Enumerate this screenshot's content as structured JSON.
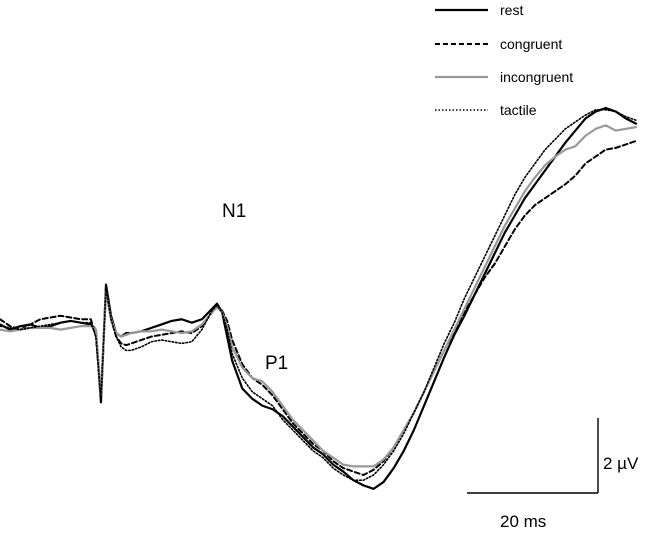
{
  "chart_data": {
    "type": "line",
    "title": "",
    "xlabel": "",
    "ylabel": "",
    "x_unit": "ms",
    "y_unit": "µV",
    "x": [
      0,
      2,
      4,
      6,
      8,
      10,
      12,
      14,
      16,
      18,
      19,
      20,
      21,
      22,
      23,
      24,
      25,
      26,
      28,
      30,
      32,
      34,
      36,
      38,
      40,
      42,
      43,
      44,
      45,
      46,
      48,
      50,
      52,
      54,
      56,
      58,
      60,
      62,
      64,
      66,
      68,
      70,
      72,
      74,
      76,
      78,
      80,
      82,
      84,
      86,
      88,
      90,
      92,
      94,
      96,
      98,
      100,
      102,
      104,
      106,
      108,
      110,
      112,
      114,
      116,
      118,
      120,
      122,
      124,
      126
    ],
    "series": [
      {
        "name": "rest",
        "color": "#000000",
        "dash": "solid",
        "values": [
          0.15,
          0.0,
          0.1,
          0.15,
          0.05,
          0.1,
          0.2,
          0.25,
          0.2,
          0.15,
          0.0,
          -2.1,
          1.3,
          0.4,
          -0.1,
          -0.2,
          -0.1,
          -0.1,
          -0.05,
          0.05,
          0.15,
          0.25,
          0.3,
          0.2,
          0.3,
          0.6,
          0.75,
          0.5,
          -0.2,
          -0.9,
          -1.7,
          -2.0,
          -2.2,
          -2.3,
          -2.5,
          -2.8,
          -3.1,
          -3.4,
          -3.6,
          -3.9,
          -4.1,
          -4.35,
          -4.5,
          -4.6,
          -4.4,
          -4.0,
          -3.5,
          -2.9,
          -2.2,
          -1.5,
          -0.8,
          -0.15,
          0.4,
          1.0,
          1.6,
          2.2,
          2.8,
          3.3,
          3.8,
          4.2,
          4.6,
          5.0,
          5.4,
          5.75,
          6.1,
          6.3,
          6.4,
          6.3,
          6.1,
          5.95
        ]
      },
      {
        "name": "congruent",
        "color": "#000000",
        "dash": "dashed",
        "values": [
          0.3,
          0.1,
          0.0,
          0.15,
          0.3,
          0.35,
          0.4,
          0.35,
          0.3,
          0.3,
          -0.2,
          -1.9,
          1.1,
          0.3,
          -0.2,
          -0.4,
          -0.45,
          -0.4,
          -0.3,
          -0.2,
          -0.15,
          -0.1,
          -0.05,
          -0.1,
          0.1,
          0.5,
          0.65,
          0.55,
          0.25,
          -0.3,
          -1.0,
          -1.4,
          -1.6,
          -1.9,
          -2.3,
          -2.7,
          -3.0,
          -3.3,
          -3.5,
          -3.8,
          -4.0,
          -4.1,
          -4.2,
          -4.05,
          -3.8,
          -3.4,
          -2.9,
          -2.4,
          -1.8,
          -1.2,
          -0.6,
          -0.05,
          0.5,
          1.0,
          1.5,
          1.9,
          2.4,
          2.9,
          3.3,
          3.6,
          3.8,
          4.0,
          4.2,
          4.45,
          4.8,
          5.0,
          5.2,
          5.25,
          5.35,
          5.45
        ]
      },
      {
        "name": "incongruent",
        "color": "#999999",
        "dash": "solid",
        "values": [
          0.0,
          -0.05,
          0.0,
          0.05,
          0.05,
          0.05,
          0.0,
          0.05,
          0.1,
          0.1,
          0.0,
          -1.9,
          1.1,
          0.3,
          -0.1,
          -0.2,
          -0.15,
          -0.1,
          -0.05,
          -0.05,
          0.0,
          -0.05,
          -0.1,
          -0.05,
          0.15,
          0.5,
          0.65,
          0.5,
          0.1,
          -0.5,
          -1.1,
          -1.4,
          -1.5,
          -1.8,
          -2.2,
          -2.6,
          -2.9,
          -3.2,
          -3.5,
          -3.7,
          -3.9,
          -3.95,
          -3.95,
          -3.95,
          -3.75,
          -3.4,
          -2.9,
          -2.4,
          -1.8,
          -1.2,
          -0.6,
          0.0,
          0.6,
          1.2,
          1.8,
          2.4,
          3.0,
          3.5,
          4.0,
          4.4,
          4.75,
          5.0,
          5.2,
          5.3,
          5.6,
          5.8,
          5.9,
          5.75,
          5.8,
          5.85
        ]
      },
      {
        "name": "tactile",
        "color": "#000000",
        "dash": "dotted",
        "values": [
          0.1,
          0.05,
          0.0,
          0.05,
          0.1,
          0.15,
          0.2,
          0.25,
          0.2,
          0.2,
          -0.2,
          -2.0,
          1.2,
          0.3,
          -0.2,
          -0.5,
          -0.6,
          -0.6,
          -0.5,
          -0.35,
          -0.3,
          -0.35,
          -0.4,
          -0.35,
          0.0,
          0.55,
          0.7,
          0.5,
          0.0,
          -0.7,
          -1.4,
          -1.8,
          -2.0,
          -2.2,
          -2.6,
          -2.9,
          -3.2,
          -3.5,
          -3.7,
          -4.0,
          -4.2,
          -4.35,
          -4.35,
          -4.2,
          -3.9,
          -3.5,
          -3.0,
          -2.4,
          -1.8,
          -1.1,
          -0.4,
          0.2,
          0.9,
          1.5,
          2.1,
          2.7,
          3.3,
          3.9,
          4.4,
          4.8,
          5.2,
          5.5,
          5.8,
          6.0,
          6.2,
          6.35,
          6.35,
          6.3,
          6.15,
          6.05
        ]
      }
    ],
    "xlim": [
      0,
      126
    ],
    "ylim": [
      -5.5,
      7.5
    ],
    "grid": false,
    "legend": {
      "position": "top-right",
      "entries": [
        "rest",
        "congruent",
        "incongruent",
        "tactile"
      ]
    },
    "annotations": {
      "n1": "N1",
      "p1": "P1"
    },
    "scale_bar": {
      "x_label": "20 ms",
      "x_value": 20,
      "y_label": "2 µV",
      "y_value": 2
    }
  }
}
